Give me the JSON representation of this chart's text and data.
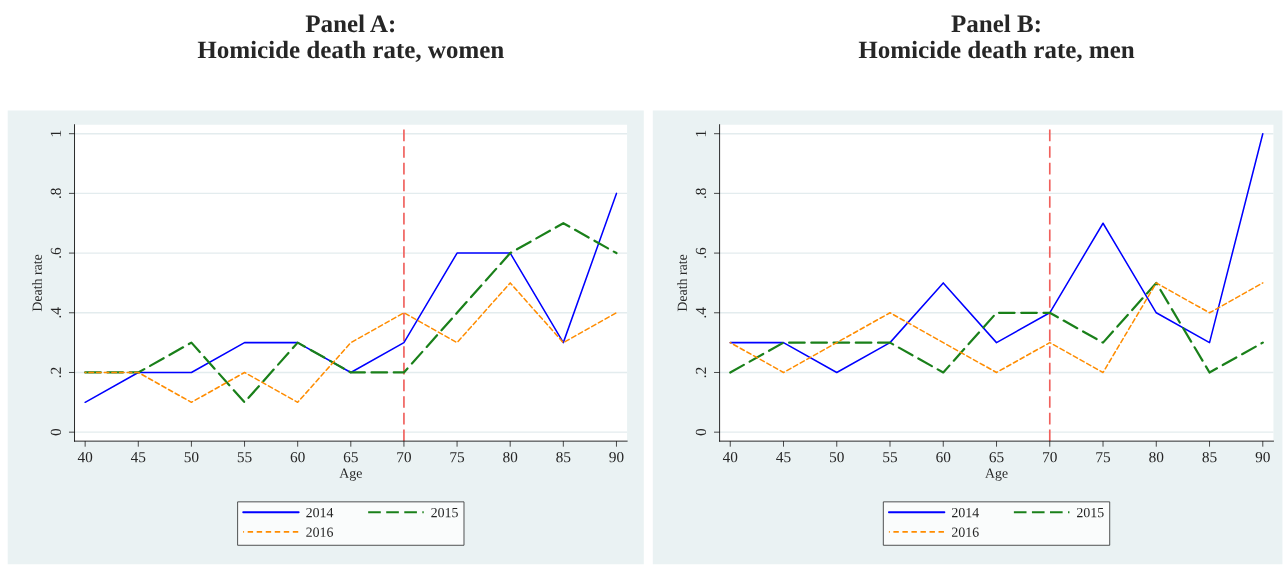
{
  "chart_data": [
    {
      "type": "line",
      "title": "Panel A:\nHomicide death rate, women",
      "xlabel": "Age",
      "ylabel": "Death rate",
      "x": [
        40,
        45,
        50,
        55,
        60,
        65,
        70,
        75,
        80,
        85,
        90
      ],
      "series": [
        {
          "name": "2014",
          "color": "#0000ff",
          "line_style": "solid",
          "values": [
            0.1,
            0.2,
            0.2,
            0.3,
            0.3,
            0.2,
            0.3,
            0.6,
            0.6,
            0.3,
            0.8
          ]
        },
        {
          "name": "2015",
          "color": "#1a801a",
          "line_style": "dashed",
          "values": [
            0.2,
            0.2,
            0.3,
            0.1,
            0.3,
            0.2,
            0.2,
            0.4,
            0.6,
            0.7,
            0.6
          ]
        },
        {
          "name": "2016",
          "color": "#ff8c00",
          "line_style": "dotted",
          "values": [
            0.2,
            0.2,
            0.1,
            0.2,
            0.1,
            0.3,
            0.4,
            0.3,
            0.5,
            0.3,
            0.4
          ]
        }
      ],
      "xlim": [
        39,
        91
      ],
      "xticks": [
        40,
        45,
        50,
        55,
        60,
        65,
        70,
        75,
        80,
        85,
        90
      ],
      "ylim": [
        -0.03,
        1.03
      ],
      "yticks": [
        0,
        {
          "value": 0.2,
          "label": ".2"
        },
        {
          "value": 0.4,
          "label": ".4"
        },
        {
          "value": 0.6,
          "label": ".6"
        },
        {
          "value": 0.8,
          "label": ".8"
        },
        1
      ],
      "ref_lines": [
        {
          "axis": "x",
          "value": 70,
          "color": "#f0605c",
          "line_style": "dashed"
        }
      ],
      "grid": "y",
      "legend": "bottom",
      "marker": "none"
    },
    {
      "type": "line",
      "title": "Panel B:\nHomicide death rate, men",
      "xlabel": "Age",
      "ylabel": "Death rate",
      "x": [
        40,
        45,
        50,
        55,
        60,
        65,
        70,
        75,
        80,
        85,
        90
      ],
      "series": [
        {
          "name": "2014",
          "color": "#0000ff",
          "line_style": "solid",
          "values": [
            0.3,
            0.3,
            0.2,
            0.3,
            0.5,
            0.3,
            0.4,
            0.7,
            0.4,
            0.3,
            1.0
          ]
        },
        {
          "name": "2015",
          "color": "#1a801a",
          "line_style": "dashed",
          "values": [
            0.2,
            0.3,
            0.3,
            0.3,
            0.2,
            0.4,
            0.4,
            0.3,
            0.5,
            0.2,
            0.3
          ]
        },
        {
          "name": "2016",
          "color": "#ff8c00",
          "line_style": "dotted",
          "values": [
            0.3,
            0.2,
            0.3,
            0.4,
            0.3,
            0.2,
            0.3,
            0.2,
            0.5,
            0.4,
            0.5
          ]
        }
      ],
      "xlim": [
        39,
        91
      ],
      "xticks": [
        40,
        45,
        50,
        55,
        60,
        65,
        70,
        75,
        80,
        85,
        90
      ],
      "ylim": [
        -0.03,
        1.03
      ],
      "yticks": [
        0,
        {
          "value": 0.2,
          "label": ".2"
        },
        {
          "value": 0.4,
          "label": ".4"
        },
        {
          "value": 0.6,
          "label": ".6"
        },
        {
          "value": 0.8,
          "label": ".8"
        },
        1
      ],
      "ref_lines": [
        {
          "axis": "x",
          "value": 70,
          "color": "#f0605c",
          "line_style": "dashed"
        }
      ],
      "grid": "y",
      "legend": "bottom",
      "marker": "none"
    }
  ]
}
